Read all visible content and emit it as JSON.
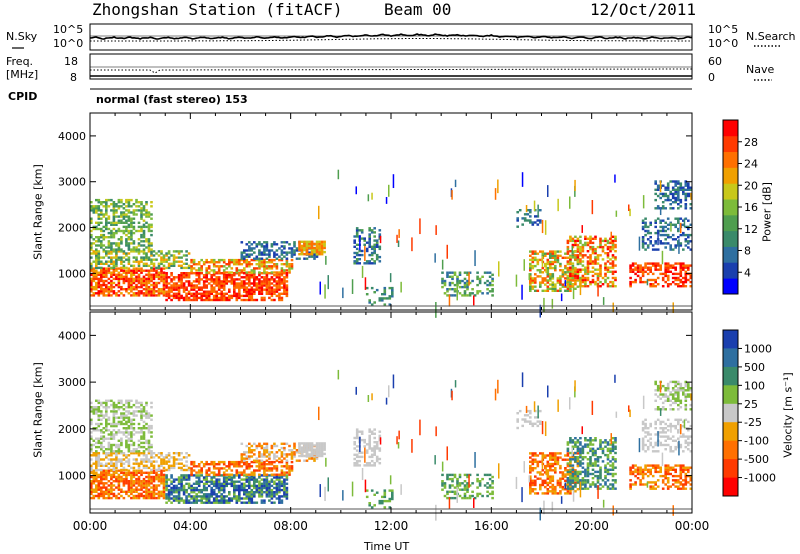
{
  "header": {
    "station": "Zhongshan Station (fitACF)",
    "beam": "Beam 00",
    "date": "12/Oct/2011"
  },
  "top_panels": {
    "nsky_label": "N.Sky",
    "nsky_ticks": [
      "10^5",
      "10^0"
    ],
    "nsearch_label": "N.Search",
    "nsearch_ticks": [
      "10^5",
      "10^0"
    ],
    "freq_label_1": "Freq.",
    "freq_label_2": "[MHz]",
    "freq_ticks": [
      "18",
      "8"
    ],
    "nave_label": "Nave",
    "nave_ticks": [
      "60",
      "0"
    ],
    "cpid_label": "CPID",
    "cpid_text": "normal (fast stereo) 153"
  },
  "chart_data": [
    {
      "type": "heatmap",
      "name": "power",
      "ylabel": "Slant Range [km]",
      "ylim": [
        200,
        4500
      ],
      "yticks": [
        "1000",
        "2000",
        "3000",
        "4000"
      ],
      "colorbar_label": "Power [dB]",
      "colorbar_ticks": [
        "4",
        "8",
        "12",
        "16",
        "20",
        "24",
        "28"
      ],
      "colors": [
        "#0000ff",
        "#1a3fae",
        "#2e6fa0",
        "#3a8a6a",
        "#4f9e4f",
        "#7dbb3a",
        "#c8c81a",
        "#f0a000",
        "#ff7000",
        "#ff3a00",
        "#ff0000"
      ]
    },
    {
      "type": "heatmap",
      "name": "velocity",
      "ylabel": "Slant Range [km]",
      "ylim": [
        200,
        4500
      ],
      "yticks": [
        "1000",
        "2000",
        "3000",
        "4000"
      ],
      "colorbar_label": "Velocity [m s⁻¹]",
      "colorbar_ticks": [
        "1000",
        "500",
        "100",
        "25",
        "-25",
        "-100",
        "-500",
        "-1000"
      ],
      "colors": [
        "#1a3fae",
        "#2e6fa0",
        "#3a8a6a",
        "#7dbb3a",
        "#c8c8c8",
        "#f0a000",
        "#ff7000",
        "#ff3a00",
        "#ff0000"
      ]
    }
  ],
  "xaxis": {
    "ticks": [
      "00:00",
      "04:00",
      "08:00",
      "12:00",
      "16:00",
      "20:00",
      "00:00"
    ],
    "label": "Time UT"
  }
}
